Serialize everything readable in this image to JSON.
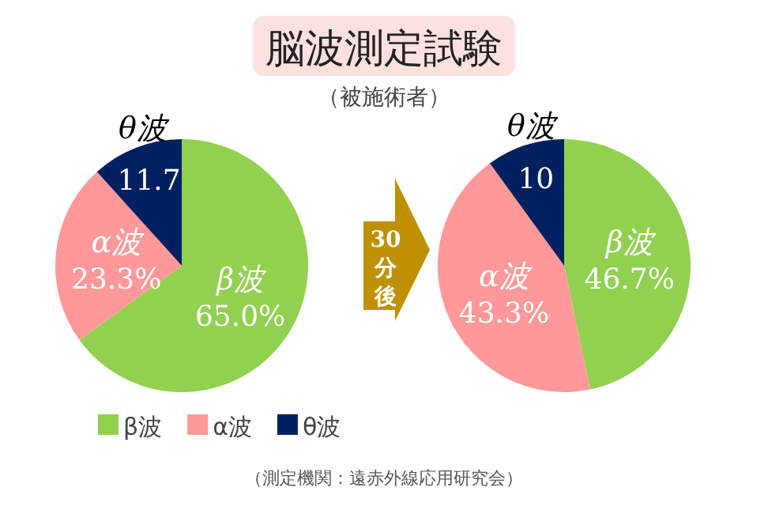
{
  "chart_data": [
    {
      "type": "pie",
      "title": "脳波測定試験",
      "subtitle": "（被施術者）",
      "categories": [
        "β波",
        "α波",
        "θ波"
      ],
      "values": [
        65.0,
        23.3,
        11.7
      ],
      "value_labels": [
        "65.0%",
        "23.3%",
        "11.7"
      ],
      "colors": [
        "#92d050",
        "#ff9999",
        "#002060"
      ],
      "legend": "bottom"
    },
    {
      "type": "pie",
      "categories": [
        "β波",
        "α波",
        "θ波"
      ],
      "values": [
        46.7,
        43.3,
        10
      ],
      "value_labels": [
        "46.7%",
        "43.3%",
        "10"
      ],
      "colors": [
        "#92d050",
        "#ff9999",
        "#002060"
      ],
      "annotations": [
        "30分後",
        "（測定機関：遠赤外線応用研究会）"
      ]
    }
  ]
}
